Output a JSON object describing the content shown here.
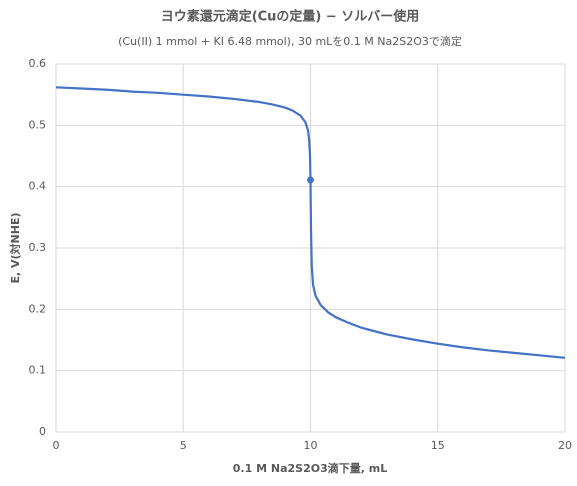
{
  "chart_data": {
    "type": "line",
    "title": "ヨウ素還元滴定(Cuの定量) − ソルバー使用",
    "subtitle": "(Cu(II) 1 mmol + KI 6.48 mmol), 30 mLを0.1 M Na2S2O3で滴定",
    "x_label": "0.1 M Na2S2O3滴下量, mL",
    "y_label": "E, V(対NHE)",
    "xlim": [
      0,
      20
    ],
    "xticks": [
      0,
      5,
      10,
      15,
      20
    ],
    "ylim": [
      0,
      0.6
    ],
    "yticks": [
      0,
      0.1,
      0.2,
      0.3,
      0.4,
      0.5,
      0.6
    ],
    "grid": true,
    "series": [
      {
        "color": "#4472c4",
        "x": [
          0,
          1,
          2,
          3,
          4,
          5,
          6,
          7,
          8,
          8.5,
          9,
          9.3,
          9.6,
          9.8,
          9.9,
          9.95,
          9.98,
          10,
          10.02,
          10.05,
          10.1,
          10.2,
          10.4,
          10.7,
          11,
          11.5,
          12,
          13,
          14,
          15,
          16,
          17,
          18,
          19,
          20
        ],
        "values": [
          0.562,
          0.56,
          0.558,
          0.555,
          0.553,
          0.55,
          0.547,
          0.543,
          0.538,
          0.534,
          0.529,
          0.524,
          0.516,
          0.505,
          0.492,
          0.475,
          0.45,
          0.411,
          0.33,
          0.27,
          0.24,
          0.222,
          0.207,
          0.195,
          0.187,
          0.178,
          0.17,
          0.159,
          0.151,
          0.144,
          0.138,
          0.133,
          0.129,
          0.125,
          0.121
        ]
      },
      {
        "color": "#4472c4",
        "markers": true,
        "x": [
          10
        ],
        "values": [
          0.411
        ]
      }
    ]
  }
}
